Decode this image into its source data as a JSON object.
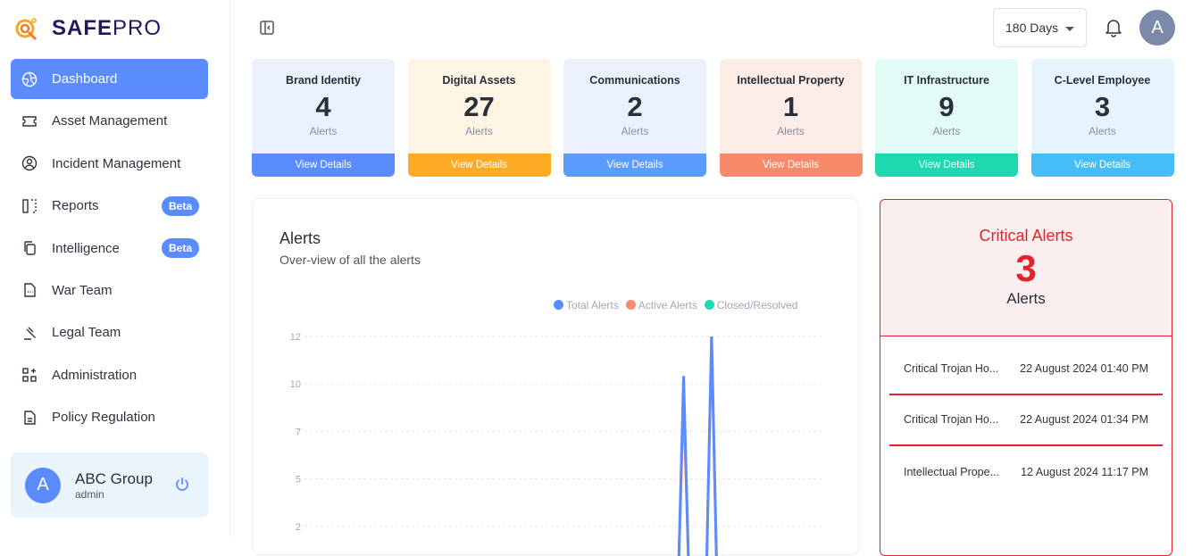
{
  "brand": {
    "name_bold": "SAFE",
    "name_light": "PRO"
  },
  "sidebar": {
    "items": [
      {
        "label": "Dashboard",
        "icon": "aperture-icon",
        "active": true
      },
      {
        "label": "Asset Management",
        "icon": "ticket-icon"
      },
      {
        "label": "Incident Management",
        "icon": "user-circle-icon"
      },
      {
        "label": "Reports",
        "icon": "columns-icon",
        "badge": "Beta"
      },
      {
        "label": "Intelligence",
        "icon": "copy-icon",
        "badge": "Beta"
      },
      {
        "label": "War Team",
        "icon": "file-dots-icon"
      },
      {
        "label": "Legal Team",
        "icon": "gavel-icon"
      },
      {
        "label": "Administration",
        "icon": "grid-plus-icon"
      },
      {
        "label": "Policy Regulation",
        "icon": "document-icon"
      }
    ]
  },
  "user": {
    "initial": "A",
    "name": "ABC Group",
    "role": "admin"
  },
  "topbar": {
    "range": "180 Days",
    "avatar": "A"
  },
  "cards": [
    {
      "title": "Brand Identity",
      "count": "4",
      "unit": "Alerts",
      "action": "View Details",
      "bg": "#eaf1fd",
      "accent": "#5b8cff"
    },
    {
      "title": "Digital Assets",
      "count": "27",
      "unit": "Alerts",
      "action": "View Details",
      "bg": "#fdf4e3",
      "accent": "#fdab24"
    },
    {
      "title": "Communications",
      "count": "2",
      "unit": "Alerts",
      "action": "View Details",
      "bg": "#eaf1fd",
      "accent": "#5b9cff"
    },
    {
      "title": "Intellectual Property",
      "count": "1",
      "unit": "Alerts",
      "action": "View Details",
      "bg": "#fbece8",
      "accent": "#f88a6c"
    },
    {
      "title": "IT Infrastructure",
      "count": "9",
      "unit": "Alerts",
      "action": "View Details",
      "bg": "#e3fbf6",
      "accent": "#1ed9b0"
    },
    {
      "title": "C-Level Employee",
      "count": "3",
      "unit": "Alerts",
      "action": "View Details",
      "bg": "#e6f4fd",
      "accent": "#47bdf8"
    }
  ],
  "alerts_panel": {
    "title": "Alerts",
    "subtitle": "Over-view of all the alerts"
  },
  "chart_data": {
    "type": "line",
    "yticks": [
      "12",
      "10",
      "7",
      "5",
      "2"
    ],
    "ylim": [
      0,
      12
    ],
    "series": [
      {
        "name": "Total Alerts",
        "color": "#5b8cff",
        "points": [
          [
            0,
            0
          ],
          [
            0.722,
            0
          ],
          [
            0.732,
            10
          ],
          [
            0.742,
            0
          ],
          [
            0.776,
            0
          ],
          [
            0.786,
            12
          ],
          [
            0.796,
            0
          ],
          [
            1,
            0
          ]
        ]
      },
      {
        "name": "Active Alerts",
        "color": "#f88a6c",
        "points": [
          [
            0,
            0
          ],
          [
            0.722,
            0
          ],
          [
            0.732,
            9
          ],
          [
            0.742,
            0
          ],
          [
            0.776,
            0
          ],
          [
            0.786,
            12
          ],
          [
            0.796,
            0
          ],
          [
            1,
            0
          ]
        ]
      },
      {
        "name": "Closed/Resolved",
        "color": "#1ed9b0",
        "points": [
          [
            0,
            0
          ],
          [
            1,
            0
          ]
        ]
      }
    ]
  },
  "critical": {
    "title": "Critical Alerts",
    "count": "3",
    "unit": "Alerts",
    "items": [
      {
        "name": "Critical Trojan Ho...",
        "date": "22 August 2024 01:40 PM"
      },
      {
        "name": "Critical Trojan Ho...",
        "date": "22 August 2024 01:34 PM"
      },
      {
        "name": "Intellectual Prope...",
        "date": "12 August 2024 11:17 PM"
      }
    ]
  }
}
